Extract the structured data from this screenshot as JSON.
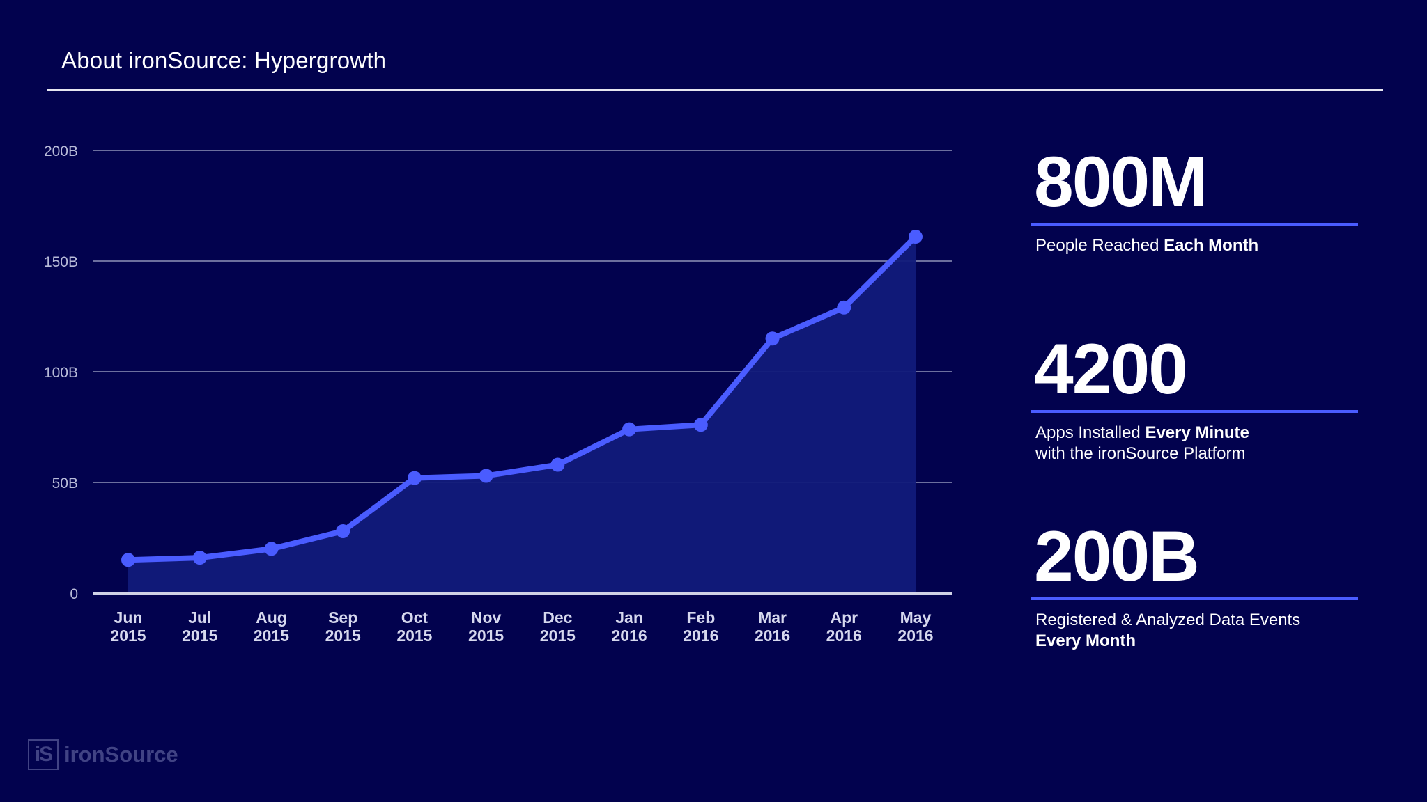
{
  "header": {
    "title": "About ironSource: Hypergrowth"
  },
  "chart_data": {
    "type": "area",
    "categories": [
      [
        "Jun",
        "2015"
      ],
      [
        "Jul",
        "2015"
      ],
      [
        "Aug",
        "2015"
      ],
      [
        "Sep",
        "2015"
      ],
      [
        "Oct",
        "2015"
      ],
      [
        "Nov",
        "2015"
      ],
      [
        "Dec",
        "2015"
      ],
      [
        "Jan",
        "2016"
      ],
      [
        "Feb",
        "2016"
      ],
      [
        "Mar",
        "2016"
      ],
      [
        "Apr",
        "2016"
      ],
      [
        "May",
        "2016"
      ]
    ],
    "values": [
      15,
      16,
      20,
      28,
      52,
      53,
      58,
      74,
      76,
      115,
      129,
      161
    ],
    "unit": "B",
    "ylim": [
      0,
      200
    ],
    "yticks": [
      0,
      50,
      100,
      150,
      200
    ],
    "ytick_labels": [
      "0",
      "50B",
      "100B",
      "150B",
      "200B"
    ],
    "grid": true,
    "line_color": "#4a5cff",
    "fill_color": "#111a7a",
    "xlabel": "",
    "ylabel": ""
  },
  "stats": [
    {
      "value": "800M",
      "desc_normal": "People Reached ",
      "desc_bold": "Each Month",
      "desc_line2_normal": "",
      "desc_line2_bold": ""
    },
    {
      "value": "4200",
      "desc_normal": "Apps Installed ",
      "desc_bold": "Every Minute",
      "desc_line2_normal": "with the ironSource Platform",
      "desc_line2_bold": ""
    },
    {
      "value": "200B",
      "desc_normal": "Registered & Analyzed Data Events",
      "desc_bold": "",
      "desc_line2_normal": "",
      "desc_line2_bold": "Every Month"
    }
  ],
  "logo": {
    "mark": "iS",
    "text": "ironSource",
    "icon": "ironsource-logo-icon"
  },
  "colors": {
    "background": "#02024e",
    "accent": "#4a5cff"
  }
}
